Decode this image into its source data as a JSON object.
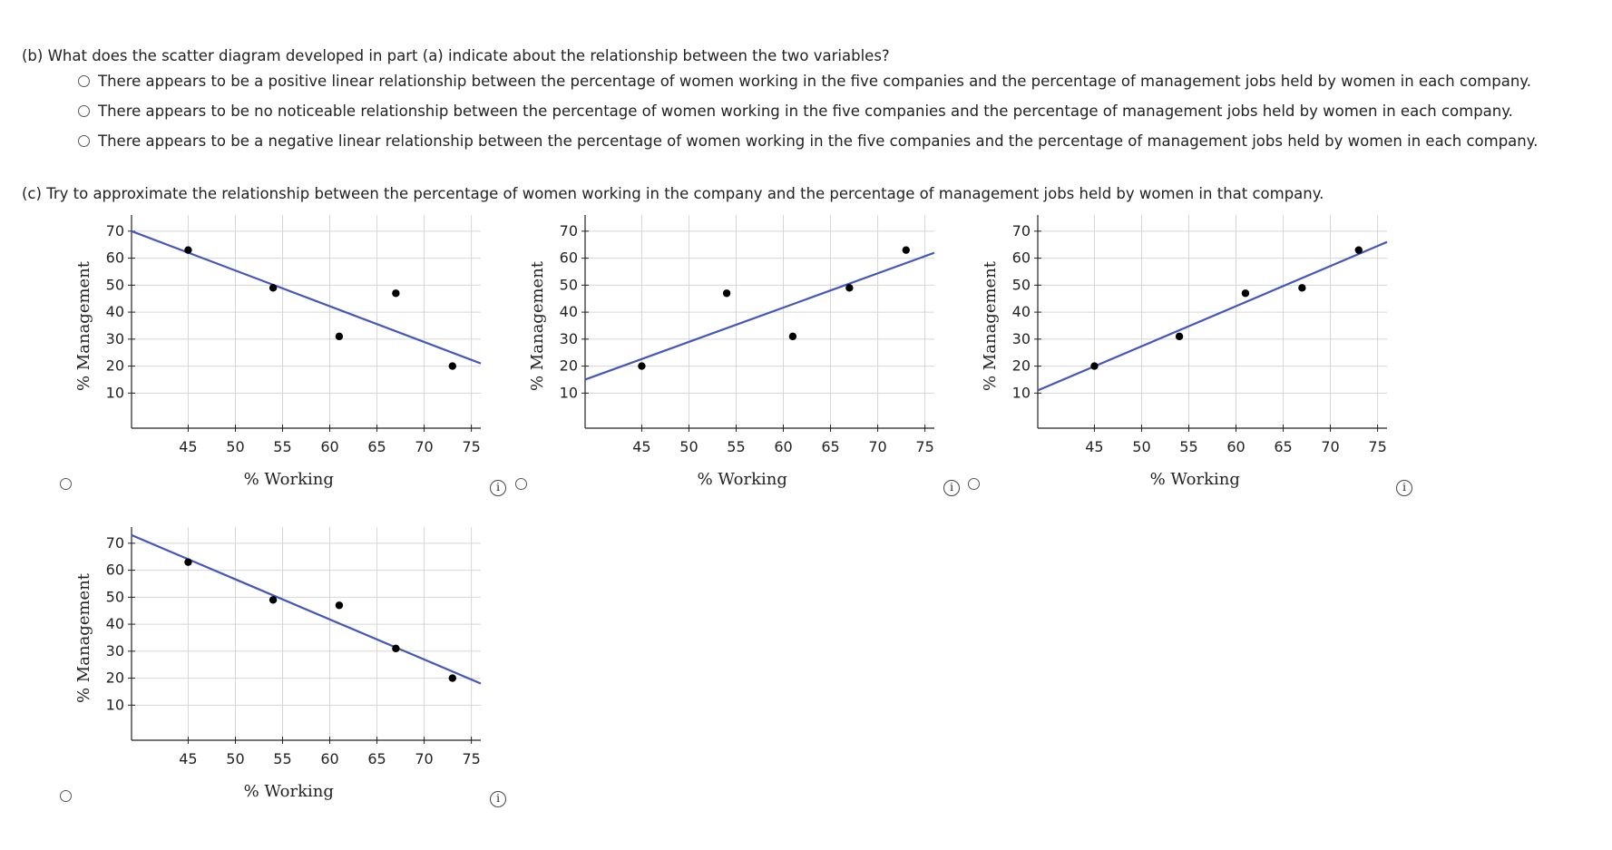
{
  "part_b": {
    "question": "(b)  What does the scatter diagram developed in part (a) indicate about the relationship between the two variables?",
    "options": [
      "There appears to be a positive linear relationship between the percentage of women working in the five companies and the percentage of management jobs held by women in each company.",
      "There appears to be no noticeable relationship between the percentage of women working in the five companies and the percentage of management jobs held by women in each company.",
      "There appears to be a negative linear relationship between the percentage of women working in the five companies and the percentage of management jobs held by women in each company."
    ]
  },
  "part_c": {
    "question": "(c)  Try to approximate the relationship between the percentage of women working in the company and the percentage of management jobs held by women in that company.",
    "info_icon": "i"
  },
  "chart_data": [
    {
      "type": "scatter",
      "xlabel": "% Working",
      "ylabel": "% Management",
      "xlim": [
        39,
        76
      ],
      "ylim": [
        -3,
        76
      ],
      "x_ticks": [
        45,
        50,
        55,
        60,
        65,
        70,
        75
      ],
      "y_ticks": [
        10,
        20,
        30,
        40,
        50,
        60,
        70
      ],
      "points": {
        "x": [
          45,
          54,
          61,
          67,
          73
        ],
        "y": [
          63,
          49,
          31,
          47,
          20
        ]
      },
      "fit_line": {
        "x": [
          39,
          76
        ],
        "y": [
          70,
          21
        ]
      }
    },
    {
      "type": "scatter",
      "xlabel": "% Working",
      "ylabel": "% Management",
      "xlim": [
        39,
        76
      ],
      "ylim": [
        -3,
        76
      ],
      "x_ticks": [
        45,
        50,
        55,
        60,
        65,
        70,
        75
      ],
      "y_ticks": [
        10,
        20,
        30,
        40,
        50,
        60,
        70
      ],
      "points": {
        "x": [
          45,
          54,
          61,
          67,
          73
        ],
        "y": [
          20,
          47,
          31,
          49,
          63
        ]
      },
      "fit_line": {
        "x": [
          39,
          76
        ],
        "y": [
          15,
          62
        ]
      }
    },
    {
      "type": "scatter",
      "xlabel": "% Working",
      "ylabel": "% Management",
      "xlim": [
        39,
        76
      ],
      "ylim": [
        -3,
        76
      ],
      "x_ticks": [
        45,
        50,
        55,
        60,
        65,
        70,
        75
      ],
      "y_ticks": [
        10,
        20,
        30,
        40,
        50,
        60,
        70
      ],
      "points": {
        "x": [
          45,
          54,
          61,
          67,
          73
        ],
        "y": [
          20,
          31,
          47,
          49,
          63
        ]
      },
      "fit_line": {
        "x": [
          39,
          76
        ],
        "y": [
          11,
          66
        ]
      }
    },
    {
      "type": "scatter",
      "xlabel": "% Working",
      "ylabel": "% Management",
      "xlim": [
        39,
        76
      ],
      "ylim": [
        -3,
        76
      ],
      "x_ticks": [
        45,
        50,
        55,
        60,
        65,
        70,
        75
      ],
      "y_ticks": [
        10,
        20,
        30,
        40,
        50,
        60,
        70
      ],
      "points": {
        "x": [
          45,
          54,
          61,
          67,
          73
        ],
        "y": [
          63,
          49,
          47,
          31,
          20
        ]
      },
      "fit_line": {
        "x": [
          39,
          76
        ],
        "y": [
          73,
          18
        ]
      }
    }
  ],
  "colors": {
    "fit_line": "#4455bb",
    "grid": "#d6d6d6",
    "point": "#000000"
  }
}
